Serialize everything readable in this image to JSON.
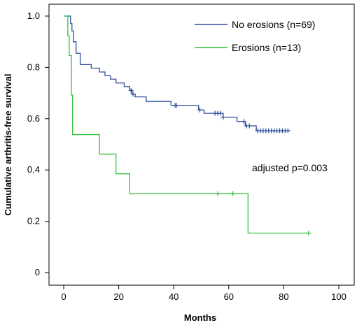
{
  "chart_data": {
    "type": "line",
    "xlabel": "Months",
    "ylabel": "Cumulative arthritis-free survival",
    "xlim": [
      0,
      100
    ],
    "ylim": [
      0,
      1.0
    ],
    "xticks": [
      "0",
      "20",
      "40",
      "60",
      "80",
      "100"
    ],
    "yticks": [
      "0",
      "0.2",
      "0.4",
      "0.6",
      "0.8",
      "1.0"
    ],
    "grid": false,
    "legend_position": "top-right",
    "annotation": "adjusted p=0.003",
    "series": [
      {
        "name": "No erosions (n=69)",
        "color": "#2d4f9b",
        "steps": [
          [
            0,
            1.0
          ],
          [
            2.5,
            0.971
          ],
          [
            3,
            0.942
          ],
          [
            3.5,
            0.9
          ],
          [
            4.5,
            0.855
          ],
          [
            6,
            0.811
          ],
          [
            10,
            0.797
          ],
          [
            13,
            0.782
          ],
          [
            15,
            0.768
          ],
          [
            17,
            0.754
          ],
          [
            19,
            0.739
          ],
          [
            22,
            0.725
          ],
          [
            24,
            0.71
          ],
          [
            24.8,
            0.696
          ],
          [
            26,
            0.685
          ],
          [
            30,
            0.667
          ],
          [
            39,
            0.652
          ],
          [
            49,
            0.634
          ],
          [
            51,
            0.621
          ],
          [
            58,
            0.606
          ],
          [
            63,
            0.589
          ],
          [
            66,
            0.572
          ],
          [
            70,
            0.553
          ],
          [
            82,
            0.553
          ]
        ],
        "censor_x": [
          24.5,
          25.2,
          40.5,
          41,
          49.5,
          55,
          56,
          57,
          58,
          65.5,
          66.5,
          67.5,
          70.5,
          71.5,
          72.5,
          73.5,
          74.5,
          75.5,
          76.5,
          77.5,
          78.5,
          79.5,
          80.5,
          81.5
        ]
      },
      {
        "name": "Erosions (n=13)",
        "color": "#34c03a",
        "steps": [
          [
            0,
            1.0
          ],
          [
            1.5,
            0.923
          ],
          [
            2,
            0.846
          ],
          [
            2.8,
            0.692
          ],
          [
            3.2,
            0.538
          ],
          [
            13,
            0.462
          ],
          [
            19,
            0.385
          ],
          [
            24,
            0.308
          ],
          [
            67,
            0.154
          ],
          [
            89,
            0.154
          ]
        ],
        "censor_x": [
          56,
          61.5,
          89
        ]
      }
    ]
  }
}
